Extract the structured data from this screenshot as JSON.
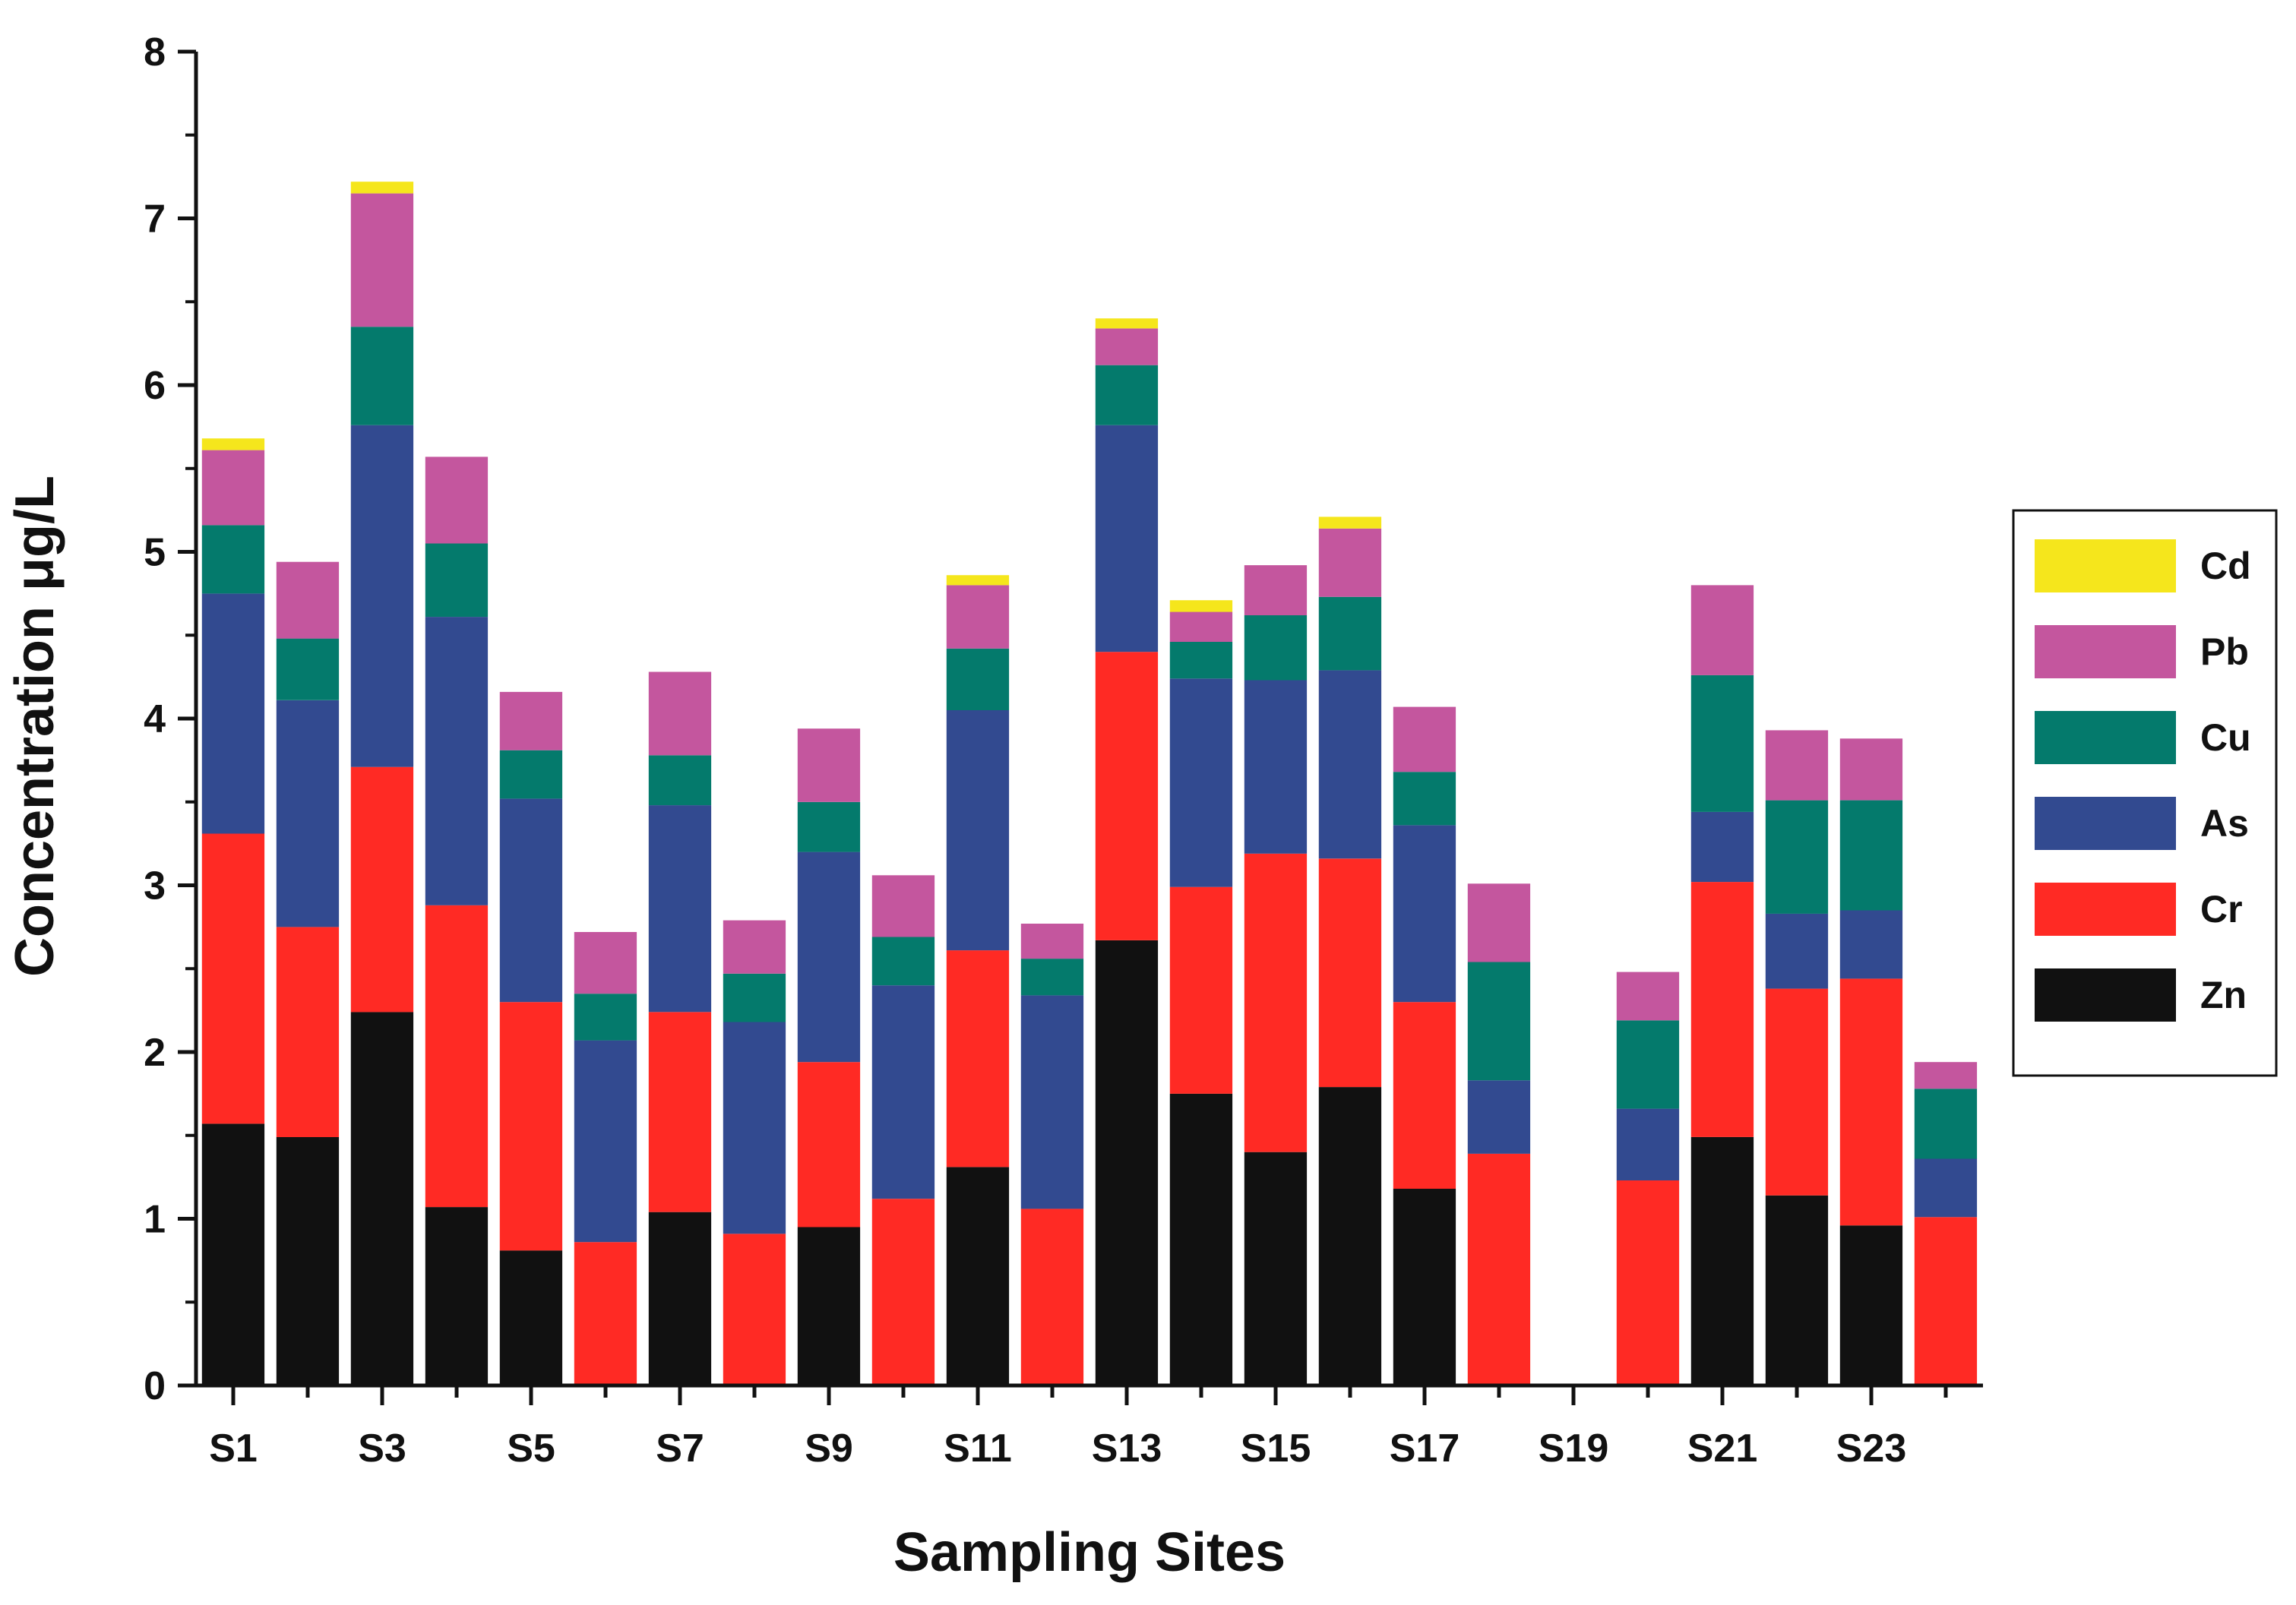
{
  "chart_data": {
    "type": "bar",
    "stacked": true,
    "title": "",
    "xlabel": "Sampling Sites",
    "ylabel": "Concentration  μg/L",
    "ylim": [
      0,
      8
    ],
    "yticks": [
      "0",
      "1",
      "2",
      "3",
      "4",
      "5",
      "6",
      "7",
      "8"
    ],
    "xtick_labels": [
      "S1",
      "S3",
      "S5",
      "S7",
      "S9",
      "S11",
      "S13",
      "S15",
      "S17",
      "S19",
      "S21",
      "S23"
    ],
    "categories": [
      "S1",
      "S2",
      "S3",
      "S4",
      "S5",
      "S6",
      "S7",
      "S8",
      "S9",
      "S10",
      "S11",
      "S12",
      "S13",
      "S14",
      "S15",
      "S16",
      "S17",
      "S18",
      "S19",
      "S20",
      "S21",
      "S22",
      "S23",
      "S24"
    ],
    "legend_position": "right",
    "series": [
      {
        "name": "Zn",
        "color": "#111111",
        "values": [
          1.57,
          1.49,
          2.24,
          1.07,
          0.81,
          0,
          1.04,
          0,
          0.95,
          0,
          1.31,
          0,
          2.67,
          1.75,
          1.4,
          1.79,
          1.18,
          0,
          0,
          0,
          1.49,
          1.14,
          0.96,
          0
        ]
      },
      {
        "name": "Cr",
        "color": "#ff2a24",
        "values": [
          1.74,
          1.26,
          1.47,
          1.81,
          1.49,
          0.86,
          1.2,
          0.91,
          0.99,
          1.12,
          1.3,
          1.06,
          1.73,
          1.24,
          1.79,
          1.37,
          1.12,
          1.39,
          0,
          1.23,
          1.53,
          1.24,
          1.48,
          1.01
        ]
      },
      {
        "name": "As",
        "color": "#324a90",
        "values": [
          1.44,
          1.36,
          2.05,
          1.73,
          1.22,
          1.21,
          1.24,
          1.27,
          1.26,
          1.28,
          1.44,
          1.28,
          1.36,
          1.25,
          1.04,
          1.13,
          1.06,
          0.44,
          0,
          0.43,
          0.42,
          0.45,
          0.41,
          0.35
        ]
      },
      {
        "name": "Cu",
        "color": "#047a6c",
        "values": [
          0.41,
          0.37,
          0.59,
          0.44,
          0.29,
          0.28,
          0.3,
          0.29,
          0.3,
          0.29,
          0.37,
          0.22,
          0.36,
          0.22,
          0.39,
          0.44,
          0.32,
          0.71,
          0,
          0.53,
          0.82,
          0.68,
          0.66,
          0.42
        ]
      },
      {
        "name": "Pb",
        "color": "#c4569e",
        "values": [
          0.45,
          0.46,
          0.8,
          0.52,
          0.35,
          0.37,
          0.5,
          0.32,
          0.44,
          0.37,
          0.38,
          0.21,
          0.22,
          0.18,
          0.3,
          0.41,
          0.39,
          0.47,
          0,
          0.29,
          0.54,
          0.42,
          0.37,
          0.16
        ]
      },
      {
        "name": "Cd",
        "color": "#f5e61c",
        "values": [
          0.07,
          0,
          0.07,
          0,
          0,
          0,
          0,
          0,
          0,
          0,
          0.06,
          0,
          0.06,
          0.07,
          0,
          0.07,
          0,
          0,
          0,
          0,
          0,
          0,
          0,
          0
        ]
      }
    ],
    "legend_order": [
      "Cd",
      "Pb",
      "Cu",
      "As",
      "Cr",
      "Zn"
    ]
  }
}
